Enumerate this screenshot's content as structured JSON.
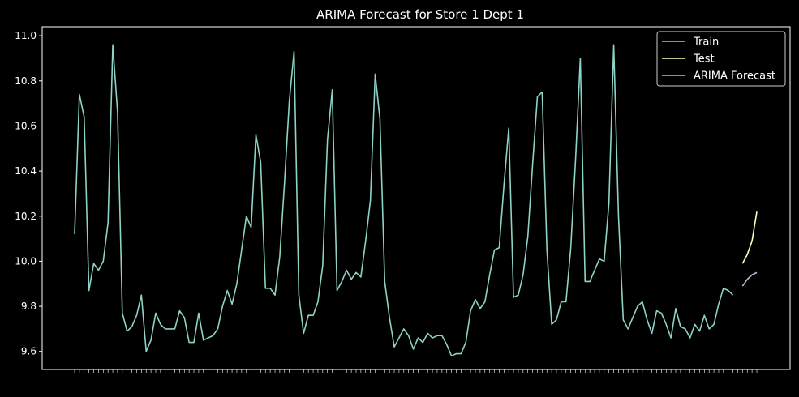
{
  "chart_data": {
    "type": "line",
    "title": "ARIMA Forecast for Store 1 Dept 1",
    "xlabel": "",
    "ylabel": "",
    "ylim": [
      9.52,
      11.04
    ],
    "yticks": [
      9.6,
      9.8,
      10.0,
      10.2,
      10.4,
      10.6,
      10.8,
      11.0
    ],
    "ytick_labels": [
      "9.6",
      "9.8",
      "10.0",
      "10.2",
      "10.4",
      "10.6",
      "10.8",
      "11.0"
    ],
    "x_tick_note": "one overlapping date label per weekly point (unreadable)",
    "grid": false,
    "legend_position": "top-right",
    "colors": {
      "background": "#000000",
      "axes": "#ffffff",
      "text": "#ffffff"
    },
    "series": [
      {
        "name": "Train",
        "color": "#8dd3c7",
        "start_index": 0,
        "values": [
          10.12,
          10.74,
          10.64,
          9.87,
          9.99,
          9.96,
          10.0,
          10.17,
          10.96,
          10.66,
          9.77,
          9.69,
          9.71,
          9.76,
          9.85,
          9.6,
          9.65,
          9.77,
          9.72,
          9.7,
          9.7,
          9.7,
          9.78,
          9.75,
          9.64,
          9.64,
          9.77,
          9.65,
          9.66,
          9.67,
          9.7,
          9.8,
          9.87,
          9.81,
          9.9,
          10.05,
          10.2,
          10.15,
          10.56,
          10.44,
          9.88,
          9.88,
          9.85,
          10.02,
          10.35,
          10.71,
          10.93,
          9.85,
          9.68,
          9.76,
          9.76,
          9.82,
          9.98,
          10.54,
          10.76,
          9.87,
          9.91,
          9.96,
          9.92,
          9.95,
          9.93,
          10.09,
          10.27,
          10.83,
          10.63,
          9.91,
          9.75,
          9.62,
          9.66,
          9.7,
          9.67,
          9.61,
          9.66,
          9.64,
          9.68,
          9.66,
          9.67,
          9.67,
          9.63,
          9.58,
          9.59,
          9.59,
          9.64,
          9.78,
          9.83,
          9.79,
          9.82,
          9.94,
          10.05,
          10.06,
          10.34,
          10.59,
          9.84,
          9.85,
          9.94,
          10.11,
          10.43,
          10.73,
          10.75,
          10.05,
          9.72,
          9.74,
          9.82,
          9.82,
          10.06,
          10.45,
          10.9,
          9.91,
          9.91,
          9.96,
          10.01,
          10.0,
          10.26,
          10.96,
          10.2,
          9.74,
          9.7,
          9.75,
          9.8,
          9.82,
          9.74,
          9.68,
          9.78,
          9.77,
          9.72,
          9.66,
          9.79,
          9.71,
          9.7,
          9.66,
          9.72,
          9.69,
          9.76,
          9.7,
          9.72,
          9.81,
          9.88,
          9.87,
          9.85
        ]
      },
      {
        "name": "Test",
        "color": "#ffffb3",
        "start_index": 140,
        "values": [
          9.99,
          10.03,
          10.09,
          10.22
        ]
      },
      {
        "name": "ARIMA Forecast",
        "color": "#bebada",
        "start_index": 140,
        "values": [
          9.89,
          9.92,
          9.94,
          9.95
        ]
      }
    ]
  }
}
